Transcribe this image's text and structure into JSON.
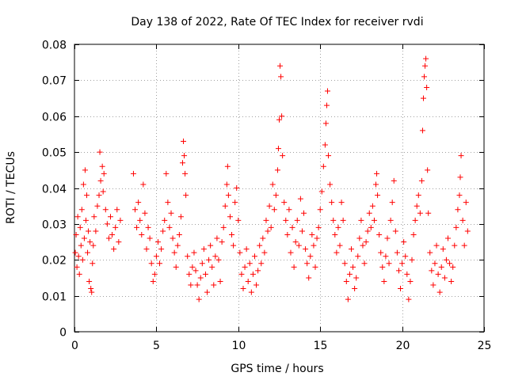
{
  "chart_data": {
    "type": "scatter",
    "title": "Day 138 of 2022, Rate Of TEC Index for receiver rvdi",
    "xlabel": "GPS time / hours",
    "ylabel": "ROTI / TECUs",
    "xlim": [
      0,
      25
    ],
    "ylim": [
      0,
      0.08
    ],
    "xticks": [
      0,
      5,
      10,
      15,
      20,
      25
    ],
    "xtick_labels": [
      "0",
      "5",
      "10",
      "15",
      "20",
      "25"
    ],
    "yticks": [
      0,
      0.01,
      0.02,
      0.03,
      0.04,
      0.05,
      0.06,
      0.07,
      0.08
    ],
    "ytick_labels": [
      "0",
      "0.01",
      "0.02",
      "0.03",
      "0.04",
      "0.05",
      "0.06",
      "0.07",
      "0.08"
    ],
    "grid": true,
    "marker": "+",
    "series": [
      {
        "name": "ROTI",
        "color": "#ff0000",
        "points": [
          [
            0.05,
            0.022
          ],
          [
            0.1,
            0.027
          ],
          [
            0.15,
            0.018
          ],
          [
            0.2,
            0.032
          ],
          [
            0.25,
            0.021
          ],
          [
            0.3,
            0.016
          ],
          [
            0.35,
            0.029
          ],
          [
            0.4,
            0.024
          ],
          [
            0.45,
            0.034
          ],
          [
            0.5,
            0.02
          ],
          [
            0.55,
            0.041
          ],
          [
            0.6,
            0.026
          ],
          [
            0.65,
            0.045
          ],
          [
            0.7,
            0.031
          ],
          [
            0.75,
            0.038
          ],
          [
            0.8,
            0.022
          ],
          [
            0.85,
            0.028
          ],
          [
            0.9,
            0.014
          ],
          [
            0.95,
            0.025
          ],
          [
            1.0,
            0.012
          ],
          [
            1.05,
            0.011
          ],
          [
            1.1,
            0.019
          ],
          [
            1.15,
            0.024
          ],
          [
            1.2,
            0.032
          ],
          [
            1.3,
            0.028
          ],
          [
            1.4,
            0.035
          ],
          [
            1.5,
            0.038
          ],
          [
            1.55,
            0.05
          ],
          [
            1.6,
            0.042
          ],
          [
            1.7,
            0.046
          ],
          [
            1.75,
            0.039
          ],
          [
            1.8,
            0.044
          ],
          [
            1.9,
            0.034
          ],
          [
            2.0,
            0.03
          ],
          [
            2.1,
            0.026
          ],
          [
            2.2,
            0.032
          ],
          [
            2.3,
            0.027
          ],
          [
            2.4,
            0.023
          ],
          [
            2.5,
            0.029
          ],
          [
            2.6,
            0.034
          ],
          [
            2.7,
            0.025
          ],
          [
            2.8,
            0.031
          ],
          [
            3.6,
            0.044
          ],
          [
            3.7,
            0.034
          ],
          [
            3.8,
            0.029
          ],
          [
            3.9,
            0.036
          ],
          [
            4.0,
            0.031
          ],
          [
            4.1,
            0.027
          ],
          [
            4.2,
            0.041
          ],
          [
            4.3,
            0.033
          ],
          [
            4.4,
            0.023
          ],
          [
            4.5,
            0.029
          ],
          [
            4.6,
            0.026
          ],
          [
            4.7,
            0.019
          ],
          [
            4.8,
            0.014
          ],
          [
            4.9,
            0.016
          ],
          [
            5.0,
            0.021
          ],
          [
            5.1,
            0.025
          ],
          [
            5.2,
            0.019
          ],
          [
            5.3,
            0.023
          ],
          [
            5.4,
            0.028
          ],
          [
            5.5,
            0.031
          ],
          [
            5.6,
            0.044
          ],
          [
            5.7,
            0.036
          ],
          [
            5.8,
            0.029
          ],
          [
            5.9,
            0.033
          ],
          [
            6.0,
            0.026
          ],
          [
            6.1,
            0.022
          ],
          [
            6.2,
            0.018
          ],
          [
            6.3,
            0.024
          ],
          [
            6.4,
            0.027
          ],
          [
            6.5,
            0.032
          ],
          [
            6.6,
            0.047
          ],
          [
            6.65,
            0.053
          ],
          [
            6.7,
            0.049
          ],
          [
            6.75,
            0.044
          ],
          [
            6.8,
            0.038
          ],
          [
            6.9,
            0.021
          ],
          [
            7.0,
            0.016
          ],
          [
            7.1,
            0.013
          ],
          [
            7.2,
            0.018
          ],
          [
            7.3,
            0.022
          ],
          [
            7.4,
            0.017
          ],
          [
            7.5,
            0.013
          ],
          [
            7.6,
            0.009
          ],
          [
            7.7,
            0.015
          ],
          [
            7.8,
            0.019
          ],
          [
            7.9,
            0.023
          ],
          [
            8.0,
            0.016
          ],
          [
            8.1,
            0.011
          ],
          [
            8.2,
            0.02
          ],
          [
            8.3,
            0.024
          ],
          [
            8.4,
            0.018
          ],
          [
            8.5,
            0.013
          ],
          [
            8.6,
            0.021
          ],
          [
            8.7,
            0.026
          ],
          [
            8.8,
            0.02
          ],
          [
            8.9,
            0.014
          ],
          [
            9.0,
            0.025
          ],
          [
            9.1,
            0.029
          ],
          [
            9.2,
            0.035
          ],
          [
            9.3,
            0.041
          ],
          [
            9.35,
            0.046
          ],
          [
            9.4,
            0.038
          ],
          [
            9.5,
            0.032
          ],
          [
            9.6,
            0.027
          ],
          [
            9.7,
            0.024
          ],
          [
            9.8,
            0.036
          ],
          [
            9.9,
            0.04
          ],
          [
            10.0,
            0.031
          ],
          [
            10.1,
            0.022
          ],
          [
            10.2,
            0.016
          ],
          [
            10.3,
            0.012
          ],
          [
            10.4,
            0.018
          ],
          [
            10.5,
            0.023
          ],
          [
            10.6,
            0.014
          ],
          [
            10.7,
            0.019
          ],
          [
            10.8,
            0.011
          ],
          [
            10.9,
            0.016
          ],
          [
            11.0,
            0.021
          ],
          [
            11.1,
            0.013
          ],
          [
            11.2,
            0.017
          ],
          [
            11.3,
            0.024
          ],
          [
            11.4,
            0.019
          ],
          [
            11.5,
            0.026
          ],
          [
            11.6,
            0.022
          ],
          [
            11.7,
            0.031
          ],
          [
            11.8,
            0.028
          ],
          [
            11.9,
            0.035
          ],
          [
            12.0,
            0.029
          ],
          [
            12.1,
            0.041
          ],
          [
            12.2,
            0.034
          ],
          [
            12.3,
            0.038
          ],
          [
            12.4,
            0.045
          ],
          [
            12.45,
            0.051
          ],
          [
            12.5,
            0.059
          ],
          [
            12.55,
            0.074
          ],
          [
            12.6,
            0.071
          ],
          [
            12.65,
            0.06
          ],
          [
            12.7,
            0.049
          ],
          [
            12.8,
            0.036
          ],
          [
            12.9,
            0.031
          ],
          [
            13.0,
            0.027
          ],
          [
            13.1,
            0.034
          ],
          [
            13.2,
            0.022
          ],
          [
            13.3,
            0.029
          ],
          [
            13.4,
            0.018
          ],
          [
            13.5,
            0.025
          ],
          [
            13.6,
            0.031
          ],
          [
            13.7,
            0.024
          ],
          [
            13.8,
            0.037
          ],
          [
            13.9,
            0.028
          ],
          [
            14.0,
            0.033
          ],
          [
            14.1,
            0.023
          ],
          [
            14.2,
            0.019
          ],
          [
            14.3,
            0.015
          ],
          [
            14.4,
            0.021
          ],
          [
            14.5,
            0.027
          ],
          [
            14.6,
            0.024
          ],
          [
            14.7,
            0.018
          ],
          [
            14.8,
            0.026
          ],
          [
            14.9,
            0.029
          ],
          [
            15.0,
            0.034
          ],
          [
            15.1,
            0.039
          ],
          [
            15.2,
            0.046
          ],
          [
            15.3,
            0.052
          ],
          [
            15.35,
            0.058
          ],
          [
            15.4,
            0.063
          ],
          [
            15.45,
            0.067
          ],
          [
            15.5,
            0.049
          ],
          [
            15.6,
            0.041
          ],
          [
            15.7,
            0.036
          ],
          [
            15.8,
            0.031
          ],
          [
            15.9,
            0.027
          ],
          [
            16.0,
            0.022
          ],
          [
            16.1,
            0.029
          ],
          [
            16.2,
            0.024
          ],
          [
            16.3,
            0.036
          ],
          [
            16.4,
            0.031
          ],
          [
            16.5,
            0.019
          ],
          [
            16.6,
            0.014
          ],
          [
            16.7,
            0.009
          ],
          [
            16.8,
            0.016
          ],
          [
            16.9,
            0.023
          ],
          [
            17.0,
            0.018
          ],
          [
            17.1,
            0.012
          ],
          [
            17.2,
            0.015
          ],
          [
            17.3,
            0.021
          ],
          [
            17.4,
            0.026
          ],
          [
            17.5,
            0.031
          ],
          [
            17.6,
            0.024
          ],
          [
            17.7,
            0.019
          ],
          [
            17.8,
            0.025
          ],
          [
            17.9,
            0.028
          ],
          [
            18.0,
            0.033
          ],
          [
            18.1,
            0.029
          ],
          [
            18.2,
            0.035
          ],
          [
            18.3,
            0.031
          ],
          [
            18.4,
            0.041
          ],
          [
            18.45,
            0.044
          ],
          [
            18.5,
            0.038
          ],
          [
            18.6,
            0.027
          ],
          [
            18.7,
            0.022
          ],
          [
            18.8,
            0.018
          ],
          [
            18.9,
            0.014
          ],
          [
            19.0,
            0.021
          ],
          [
            19.1,
            0.026
          ],
          [
            19.2,
            0.019
          ],
          [
            19.3,
            0.031
          ],
          [
            19.4,
            0.036
          ],
          [
            19.5,
            0.042
          ],
          [
            19.6,
            0.028
          ],
          [
            19.7,
            0.022
          ],
          [
            19.8,
            0.017
          ],
          [
            19.9,
            0.012
          ],
          [
            20.0,
            0.019
          ],
          [
            20.1,
            0.025
          ],
          [
            20.2,
            0.021
          ],
          [
            20.3,
            0.016
          ],
          [
            20.4,
            0.009
          ],
          [
            20.5,
            0.014
          ],
          [
            20.6,
            0.02
          ],
          [
            20.7,
            0.027
          ],
          [
            20.8,
            0.031
          ],
          [
            20.9,
            0.035
          ],
          [
            21.0,
            0.038
          ],
          [
            21.1,
            0.033
          ],
          [
            21.2,
            0.042
          ],
          [
            21.25,
            0.056
          ],
          [
            21.3,
            0.065
          ],
          [
            21.35,
            0.071
          ],
          [
            21.4,
            0.074
          ],
          [
            21.45,
            0.076
          ],
          [
            21.5,
            0.068
          ],
          [
            21.55,
            0.045
          ],
          [
            21.6,
            0.033
          ],
          [
            21.7,
            0.022
          ],
          [
            21.8,
            0.017
          ],
          [
            21.9,
            0.013
          ],
          [
            22.0,
            0.019
          ],
          [
            22.1,
            0.024
          ],
          [
            22.2,
            0.016
          ],
          [
            22.3,
            0.011
          ],
          [
            22.4,
            0.018
          ],
          [
            22.5,
            0.023
          ],
          [
            22.6,
            0.015
          ],
          [
            22.7,
            0.02
          ],
          [
            22.8,
            0.026
          ],
          [
            22.9,
            0.019
          ],
          [
            23.0,
            0.014
          ],
          [
            23.1,
            0.018
          ],
          [
            23.2,
            0.024
          ],
          [
            23.3,
            0.029
          ],
          [
            23.4,
            0.034
          ],
          [
            23.5,
            0.038
          ],
          [
            23.55,
            0.043
          ],
          [
            23.6,
            0.049
          ],
          [
            23.7,
            0.031
          ],
          [
            23.8,
            0.024
          ],
          [
            23.9,
            0.036
          ],
          [
            24.0,
            0.028
          ]
        ]
      }
    ]
  }
}
